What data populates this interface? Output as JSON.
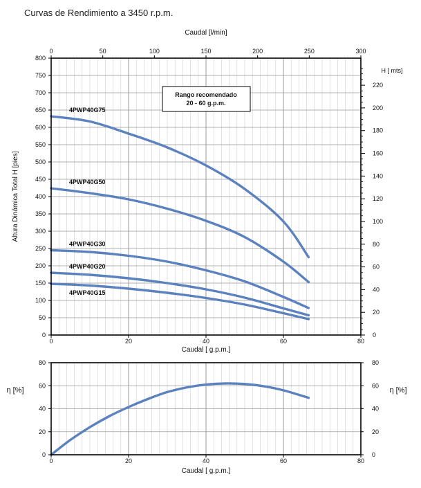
{
  "title": "Curvas de Rendimiento a 3450 r.p.m.",
  "colors": {
    "curve": "#5b82bf",
    "grid_major": "#999999",
    "grid_minor": "#cfcfcf",
    "axis": "#000000"
  },
  "chart_data": [
    {
      "type": "line",
      "xlabel": "Caudal [ g.p.m.]",
      "x2label": "Caudal [l/min]",
      "ylabel": "Altura Dinámica Total H [pies]",
      "y2label": "H [ mts]",
      "xlim": [
        0,
        80
      ],
      "x2lim": [
        0,
        300
      ],
      "ylim": [
        0,
        800
      ],
      "y2lim": [
        0,
        243.84
      ],
      "x_ticks": [
        0,
        20,
        40,
        60,
        80
      ],
      "x2_ticks": [
        0,
        50,
        100,
        150,
        200,
        250,
        300
      ],
      "y_ticks": [
        0,
        50,
        100,
        150,
        200,
        250,
        300,
        350,
        400,
        450,
        500,
        550,
        600,
        650,
        700,
        750,
        800
      ],
      "y2_ticks": [
        0,
        20,
        40,
        60,
        80,
        100,
        120,
        140,
        160,
        180,
        200,
        220
      ],
      "grid": true,
      "annotation": {
        "line1": "Rango recomendado",
        "line2": "20 - 60 g.p.m."
      },
      "series": [
        {
          "name": "4PWP40G75",
          "x": [
            0,
            10,
            20,
            30,
            40,
            50,
            60,
            66.5
          ],
          "y": [
            632,
            617,
            582,
            542,
            490,
            422,
            328,
            225
          ]
        },
        {
          "name": "4PWP40G50",
          "x": [
            0,
            10,
            20,
            30,
            40,
            50,
            60,
            66.5
          ],
          "y": [
            424,
            410,
            392,
            365,
            330,
            283,
            212,
            153
          ]
        },
        {
          "name": "4PWP40G30",
          "x": [
            0,
            10,
            20,
            30,
            40,
            50,
            60,
            66.5
          ],
          "y": [
            245,
            240,
            229,
            212,
            187,
            155,
            110,
            78
          ]
        },
        {
          "name": "4PWP40G20",
          "x": [
            0,
            10,
            20,
            30,
            40,
            50,
            60,
            66.5
          ],
          "y": [
            180,
            174,
            164,
            150,
            132,
            108,
            77,
            57
          ]
        },
        {
          "name": "4PWP40G15",
          "x": [
            0,
            10,
            20,
            30,
            40,
            50,
            60,
            66.5
          ],
          "y": [
            148,
            143,
            134,
            122,
            107,
            88,
            63,
            46
          ]
        }
      ]
    },
    {
      "type": "line",
      "xlabel": "Caudal [ g.p.m.]",
      "ylabel": "η [%]",
      "y2label": "η [%]",
      "xlim": [
        0,
        80
      ],
      "ylim": [
        0,
        80
      ],
      "x_ticks": [
        0,
        20,
        40,
        60,
        80
      ],
      "y_ticks": [
        0,
        20,
        40,
        60,
        80
      ],
      "grid": true,
      "series": [
        {
          "x": [
            0,
            5,
            10,
            15,
            20,
            25,
            30,
            35,
            40,
            45,
            50,
            55,
            60,
            66.5
          ],
          "y": [
            0,
            13,
            24,
            33.5,
            41.5,
            48.5,
            54.5,
            58.5,
            61,
            62,
            61.5,
            59.5,
            56,
            49.5
          ]
        }
      ]
    }
  ]
}
